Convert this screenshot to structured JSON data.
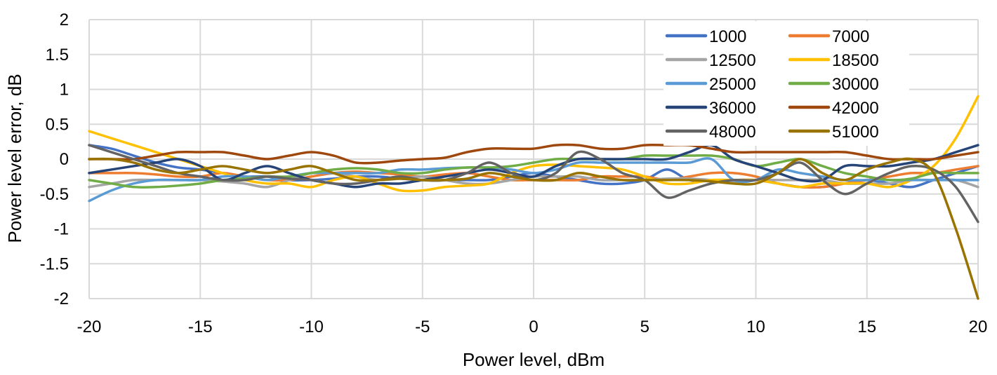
{
  "chart_data": {
    "type": "line",
    "title": "",
    "xlabel": "Power level, dBm",
    "ylabel": "Power level error, dB",
    "xlim": [
      -20,
      20
    ],
    "ylim": [
      -2,
      2
    ],
    "x_ticks": [
      -20,
      -15,
      -10,
      -5,
      0,
      5,
      10,
      15,
      20
    ],
    "y_ticks": [
      2,
      1.5,
      1,
      0.5,
      0,
      -0.5,
      -1,
      -1.5,
      -2
    ],
    "grid": true,
    "legend_position": "top-right",
    "smooth": true,
    "x": [
      -20,
      -19,
      -18,
      -17,
      -16,
      -15,
      -14,
      -13,
      -12,
      -11,
      -10,
      -9,
      -8,
      -7,
      -6,
      -5,
      -4,
      -3,
      -2,
      -1,
      0,
      1,
      2,
      3,
      4,
      5,
      6,
      7,
      8,
      9,
      10,
      11,
      12,
      13,
      14,
      15,
      16,
      17,
      18,
      19,
      20
    ],
    "series": [
      {
        "name": "1000",
        "color": "#4472c4",
        "values": [
          0.2,
          0.15,
          0.05,
          -0.05,
          -0.12,
          -0.15,
          -0.2,
          -0.25,
          -0.25,
          -0.3,
          -0.3,
          -0.28,
          -0.25,
          -0.25,
          -0.28,
          -0.3,
          -0.3,
          -0.3,
          -0.3,
          -0.25,
          -0.2,
          -0.25,
          -0.3,
          -0.35,
          -0.35,
          -0.3,
          -0.15,
          -0.3,
          -0.3,
          -0.3,
          -0.3,
          -0.35,
          -0.4,
          -0.4,
          -0.35,
          -0.3,
          -0.35,
          -0.4,
          -0.3,
          -0.2,
          -0.1
        ]
      },
      {
        "name": "7000",
        "color": "#ed7d31",
        "values": [
          -0.2,
          -0.2,
          -0.2,
          -0.22,
          -0.25,
          -0.25,
          -0.2,
          -0.25,
          -0.3,
          -0.3,
          -0.25,
          -0.2,
          -0.18,
          -0.2,
          -0.22,
          -0.25,
          -0.22,
          -0.2,
          -0.25,
          -0.3,
          -0.3,
          -0.3,
          -0.3,
          -0.25,
          -0.25,
          -0.25,
          -0.3,
          -0.25,
          -0.2,
          -0.2,
          -0.25,
          -0.35,
          -0.4,
          -0.4,
          -0.35,
          -0.3,
          -0.25,
          -0.2,
          -0.2,
          -0.15,
          -0.1
        ]
      },
      {
        "name": "12500",
        "color": "#a5a5a5",
        "values": [
          -0.4,
          -0.35,
          -0.3,
          -0.3,
          -0.3,
          -0.3,
          -0.32,
          -0.35,
          -0.4,
          -0.3,
          -0.2,
          -0.2,
          -0.25,
          -0.3,
          -0.28,
          -0.25,
          -0.3,
          -0.35,
          -0.35,
          -0.3,
          -0.25,
          -0.25,
          -0.25,
          -0.3,
          -0.3,
          -0.3,
          -0.28,
          -0.28,
          -0.3,
          -0.32,
          -0.3,
          -0.3,
          -0.3,
          -0.3,
          -0.35,
          -0.35,
          -0.35,
          -0.3,
          -0.3,
          -0.3,
          -0.4
        ]
      },
      {
        "name": "18500",
        "color": "#ffc000",
        "values": [
          0.4,
          0.3,
          0.2,
          0.1,
          0.0,
          -0.1,
          -0.2,
          -0.3,
          -0.35,
          -0.35,
          -0.4,
          -0.3,
          -0.25,
          -0.35,
          -0.45,
          -0.45,
          -0.4,
          -0.38,
          -0.35,
          -0.2,
          -0.1,
          -0.08,
          -0.1,
          -0.12,
          -0.15,
          -0.25,
          -0.35,
          -0.35,
          -0.3,
          -0.3,
          -0.3,
          -0.35,
          -0.4,
          -0.35,
          -0.35,
          -0.35,
          -0.4,
          -0.3,
          -0.1,
          0.3,
          0.9
        ]
      },
      {
        "name": "25000",
        "color": "#5b9bd5",
        "values": [
          -0.6,
          -0.45,
          -0.35,
          -0.3,
          -0.3,
          -0.3,
          -0.25,
          -0.25,
          -0.3,
          -0.25,
          -0.2,
          -0.2,
          -0.2,
          -0.2,
          -0.15,
          -0.15,
          -0.13,
          -0.12,
          -0.12,
          -0.15,
          -0.2,
          -0.15,
          -0.05,
          -0.05,
          -0.05,
          -0.05,
          -0.05,
          -0.05,
          0.0,
          -0.3,
          -0.3,
          -0.15,
          -0.2,
          -0.25,
          -0.3,
          -0.3,
          -0.3,
          -0.3,
          -0.3,
          -0.3,
          -0.3
        ]
      },
      {
        "name": "30000",
        "color": "#70ad47",
        "values": [
          -0.3,
          -0.35,
          -0.4,
          -0.4,
          -0.38,
          -0.35,
          -0.3,
          -0.28,
          -0.25,
          -0.25,
          -0.2,
          -0.15,
          -0.13,
          -0.15,
          -0.2,
          -0.2,
          -0.15,
          -0.12,
          -0.12,
          -0.1,
          -0.05,
          0.0,
          0.0,
          0.0,
          0.0,
          0.05,
          0.05,
          0.05,
          0.05,
          0.0,
          -0.1,
          -0.05,
          0.0,
          -0.1,
          -0.2,
          -0.25,
          -0.3,
          -0.28,
          -0.2,
          -0.2,
          -0.2
        ]
      },
      {
        "name": "36000",
        "color": "#264478",
        "values": [
          -0.2,
          -0.15,
          -0.1,
          -0.05,
          0.0,
          -0.1,
          -0.3,
          -0.2,
          -0.1,
          -0.2,
          -0.3,
          -0.35,
          -0.4,
          -0.35,
          -0.35,
          -0.3,
          -0.25,
          -0.2,
          -0.15,
          -0.2,
          -0.25,
          -0.1,
          0.0,
          0.0,
          0.0,
          0.0,
          0.0,
          0.1,
          0.2,
          0.0,
          -0.1,
          -0.2,
          -0.3,
          -0.3,
          -0.1,
          -0.1,
          -0.1,
          -0.05,
          0.0,
          0.1,
          0.2
        ]
      },
      {
        "name": "42000",
        "color": "#9e480e",
        "values": [
          0.0,
          0.0,
          0.0,
          0.05,
          0.1,
          0.1,
          0.1,
          0.05,
          0.0,
          0.05,
          0.1,
          0.05,
          -0.05,
          -0.05,
          -0.02,
          0.0,
          0.02,
          0.1,
          0.15,
          0.15,
          0.15,
          0.2,
          0.2,
          0.15,
          0.15,
          0.2,
          0.2,
          0.2,
          0.15,
          0.1,
          0.1,
          0.1,
          0.1,
          0.1,
          0.1,
          0.05,
          0.0,
          0.0,
          0.0,
          0.05,
          0.1
        ]
      },
      {
        "name": "48000",
        "color": "#636363",
        "values": [
          0.2,
          0.1,
          0.0,
          -0.1,
          -0.2,
          -0.25,
          -0.3,
          -0.3,
          -0.25,
          -0.28,
          -0.3,
          -0.35,
          -0.35,
          -0.3,
          -0.25,
          -0.3,
          -0.3,
          -0.2,
          -0.05,
          -0.2,
          -0.3,
          -0.2,
          0.1,
          0.0,
          -0.2,
          -0.3,
          -0.55,
          -0.45,
          -0.35,
          -0.3,
          -0.3,
          -0.2,
          -0.05,
          -0.3,
          -0.5,
          -0.35,
          -0.2,
          -0.1,
          -0.15,
          -0.4,
          -0.9
        ]
      },
      {
        "name": "51000",
        "color": "#997300",
        "values": [
          0.0,
          0.0,
          -0.05,
          -0.15,
          -0.2,
          -0.15,
          -0.1,
          -0.15,
          -0.2,
          -0.15,
          -0.1,
          -0.2,
          -0.3,
          -0.3,
          -0.28,
          -0.3,
          -0.3,
          -0.28,
          -0.2,
          -0.25,
          -0.3,
          -0.3,
          -0.2,
          -0.25,
          -0.3,
          -0.3,
          -0.3,
          -0.3,
          -0.32,
          -0.35,
          -0.35,
          -0.2,
          0.0,
          -0.2,
          -0.3,
          -0.15,
          -0.05,
          0.0,
          -0.2,
          -1.0,
          -2.0
        ]
      }
    ]
  }
}
